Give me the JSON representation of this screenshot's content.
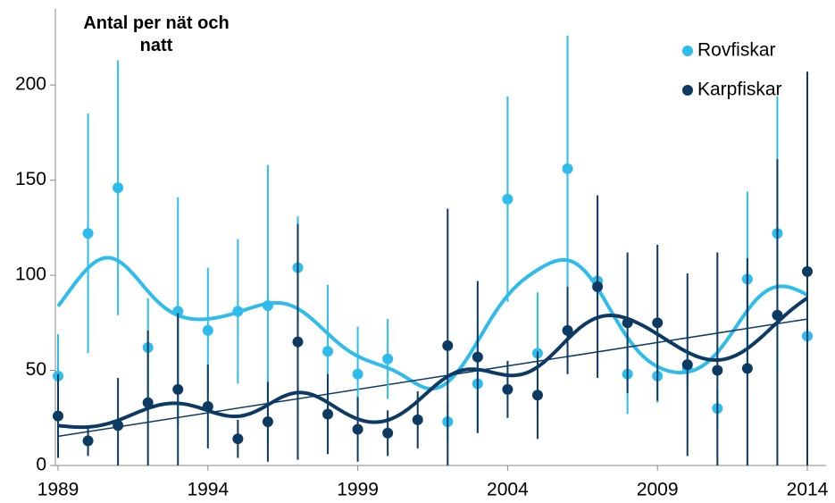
{
  "chart_data": {
    "type": "scatter",
    "y_axis_title": "Antal per nät och natt",
    "x": [
      1989,
      1990,
      1991,
      1992,
      1993,
      1994,
      1995,
      1996,
      1997,
      1998,
      1999,
      2000,
      2001,
      2002,
      2003,
      2004,
      2005,
      2006,
      2007,
      2008,
      2009,
      2010,
      2011,
      2012,
      2013,
      2014
    ],
    "series": [
      {
        "name": "Rovfiskar",
        "color": "#2ebcec",
        "values": [
          47,
          122,
          146,
          62,
          81,
          71,
          81,
          84,
          104,
          60,
          48,
          56,
          null,
          23,
          43,
          140,
          59,
          156,
          97,
          48,
          47,
          51,
          30,
          98,
          122,
          68
        ],
        "errors": [
          22,
          63,
          67,
          26,
          60,
          33,
          38,
          74,
          27,
          35,
          25,
          21,
          null,
          10,
          25,
          54,
          32,
          70,
          10,
          21,
          14,
          10,
          10,
          46,
          72,
          10
        ]
      },
      {
        "name": "Karpfiskar",
        "color": "#0c3a63",
        "values": [
          26,
          13,
          21,
          33,
          40,
          31,
          14,
          23,
          65,
          27,
          19,
          17,
          24,
          63,
          57,
          40,
          37,
          71,
          94,
          75,
          75,
          53,
          50,
          51,
          79,
          102
        ],
        "errors": [
          22,
          8,
          25,
          38,
          40,
          22,
          10,
          21,
          62,
          21,
          17,
          12,
          15,
          72,
          40,
          15,
          23,
          23,
          48,
          37,
          41,
          48,
          62,
          58,
          82,
          105
        ]
      }
    ],
    "xlim": [
      1989,
      2014
    ],
    "xticks": [
      1989,
      1994,
      1999,
      2004,
      2009,
      2014
    ],
    "ylim": [
      0,
      240
    ],
    "yticks": [
      0,
      50,
      100,
      150,
      200
    ],
    "smooth": true,
    "trend_line": true,
    "legend": "top-right"
  }
}
